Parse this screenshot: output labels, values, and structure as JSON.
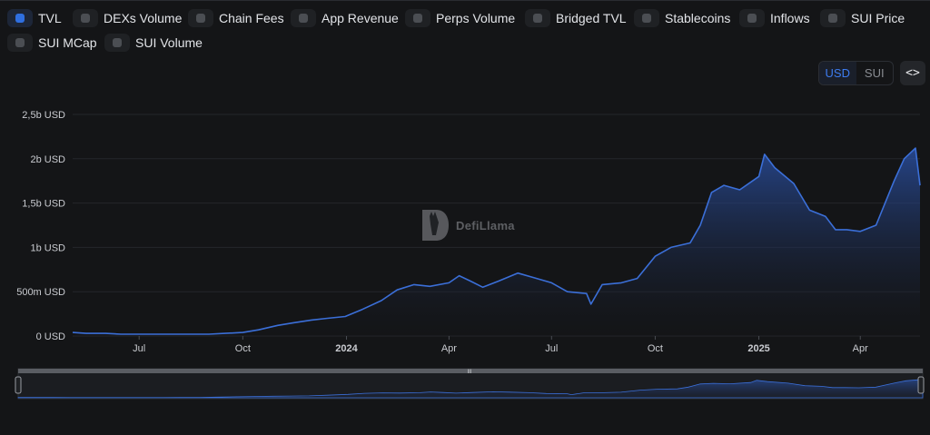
{
  "toggles": [
    {
      "label": "TVL",
      "active": true
    },
    {
      "label": "DEXs Volume",
      "active": false
    },
    {
      "label": "Chain Fees",
      "active": false
    },
    {
      "label": "App Revenue",
      "active": false
    },
    {
      "label": "Perps Volume",
      "active": false
    },
    {
      "label": "Bridged TVL",
      "active": false
    },
    {
      "label": "Stablecoins",
      "active": false
    },
    {
      "label": "Inflows",
      "active": false
    },
    {
      "label": "SUI Price",
      "active": false
    },
    {
      "label": "SUI MCap",
      "active": false
    },
    {
      "label": "SUI Volume",
      "active": false
    }
  ],
  "unit_options": [
    "USD",
    "SUI"
  ],
  "unit_selected": "USD",
  "embed_label": "<>",
  "watermark": "DefiLlama",
  "colors": {
    "line": "#3b6fd8",
    "accent": "#2f6fe0",
    "background": "#141517"
  },
  "chart_data": {
    "type": "area",
    "series": [
      {
        "name": "TVL",
        "x": [
          "2023-05-03",
          "2023-05-15",
          "2023-06-01",
          "2023-06-15",
          "2023-07-01",
          "2023-07-15",
          "2023-08-01",
          "2023-08-15",
          "2023-09-01",
          "2023-09-15",
          "2023-10-01",
          "2023-10-15",
          "2023-11-01",
          "2023-11-15",
          "2023-12-01",
          "2023-12-15",
          "2023-12-31",
          "2024-01-15",
          "2024-02-01",
          "2024-02-15",
          "2024-03-01",
          "2024-03-15",
          "2024-04-01",
          "2024-04-10",
          "2024-04-20",
          "2024-05-01",
          "2024-05-15",
          "2024-06-01",
          "2024-06-15",
          "2024-07-01",
          "2024-07-15",
          "2024-08-01",
          "2024-08-05",
          "2024-08-15",
          "2024-09-01",
          "2024-09-15",
          "2024-10-01",
          "2024-10-15",
          "2024-11-01",
          "2024-11-10",
          "2024-11-20",
          "2024-12-01",
          "2024-12-15",
          "2025-01-01",
          "2025-01-06",
          "2025-01-15",
          "2025-02-01",
          "2025-02-15",
          "2025-03-01",
          "2025-03-10",
          "2025-03-20",
          "2025-04-01",
          "2025-04-15",
          "2025-05-01",
          "2025-05-10",
          "2025-05-20",
          "2025-05-24"
        ],
        "y": [
          0.04,
          0.03,
          0.03,
          0.02,
          0.02,
          0.02,
          0.02,
          0.02,
          0.02,
          0.03,
          0.04,
          0.07,
          0.12,
          0.15,
          0.18,
          0.2,
          0.22,
          0.3,
          0.4,
          0.52,
          0.58,
          0.56,
          0.6,
          0.68,
          0.62,
          0.55,
          0.62,
          0.71,
          0.66,
          0.6,
          0.5,
          0.48,
          0.36,
          0.58,
          0.6,
          0.65,
          0.9,
          1.0,
          1.05,
          1.25,
          1.62,
          1.7,
          1.65,
          1.8,
          2.05,
          1.9,
          1.72,
          1.42,
          1.35,
          1.2,
          1.2,
          1.18,
          1.25,
          1.75,
          2.0,
          2.12,
          1.7
        ]
      }
    ],
    "xticks": [
      {
        "date": "2023-07-01",
        "label": "Jul",
        "bold": false
      },
      {
        "date": "2023-10-01",
        "label": "Oct",
        "bold": false
      },
      {
        "date": "2024-01-01",
        "label": "2024",
        "bold": true
      },
      {
        "date": "2024-04-01",
        "label": "Apr",
        "bold": false
      },
      {
        "date": "2024-07-01",
        "label": "Jul",
        "bold": false
      },
      {
        "date": "2024-10-01",
        "label": "Oct",
        "bold": false
      },
      {
        "date": "2025-01-01",
        "label": "2025",
        "bold": true
      },
      {
        "date": "2025-04-01",
        "label": "Apr",
        "bold": false
      }
    ],
    "yticks": [
      {
        "value": 0,
        "label": "0 USD"
      },
      {
        "value": 0.5,
        "label": "500m USD"
      },
      {
        "value": 1.0,
        "label": "1b USD"
      },
      {
        "value": 1.5,
        "label": "1,5b USD"
      },
      {
        "value": 2.0,
        "label": "2b USD"
      },
      {
        "value": 2.5,
        "label": "2,5b USD"
      }
    ],
    "ylim": [
      0,
      2.5
    ],
    "xlim": [
      "2023-05-03",
      "2025-05-24"
    ],
    "grid": true,
    "brush_handle_label": "III"
  }
}
